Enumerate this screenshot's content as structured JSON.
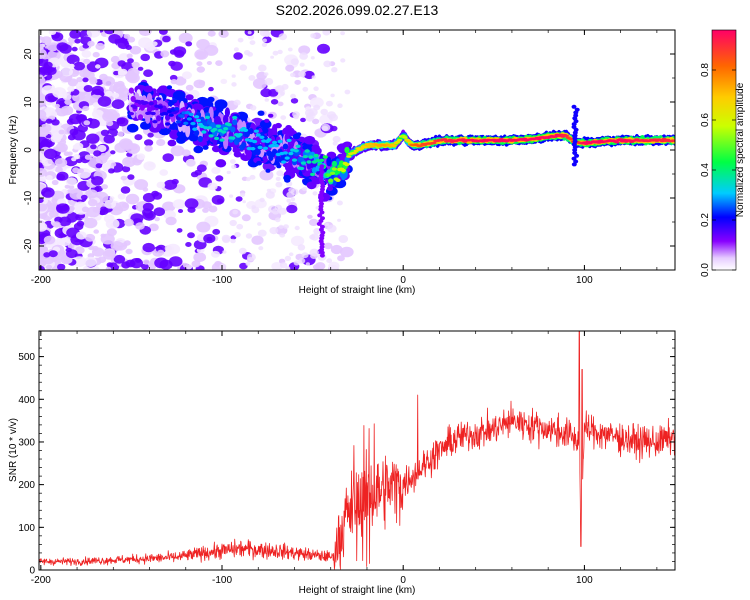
{
  "title": "S202.2026.099.02.27.E13",
  "colors": {
    "snr_line": "#ee2222",
    "ridge_hot": "#e81e3c",
    "background": "#ffffff",
    "axis": "#000000"
  },
  "chart_data": [
    {
      "type": "heatmap",
      "name": "spectrogram",
      "title": "S202.2026.099.02.27.E13",
      "xlabel": "Height of straight line (km)",
      "ylabel": "Frequency (Hz)",
      "xlim": [
        -201,
        150
      ],
      "ylim": [
        -25,
        25
      ],
      "xticks": [
        -200,
        -100,
        0,
        100
      ],
      "xtick_labels": [
        "-200",
        "-100",
        "0",
        "100"
      ],
      "yticks": [
        20,
        10,
        0,
        -10,
        -20
      ],
      "ytick_labels": [
        "20",
        "10",
        "0",
        "-10",
        "-20"
      ],
      "ridge": {
        "description_points_x_km": [
          -145,
          -130,
          -115,
          -105,
          -95,
          -85,
          -75,
          -65,
          -55,
          -45,
          -40,
          -35,
          -30,
          -25,
          -20,
          -10,
          -5,
          0,
          5,
          10,
          20,
          40,
          60,
          75,
          85,
          90,
          95,
          100,
          120,
          150
        ],
        "description_points_freq_hz": [
          9,
          8,
          6,
          5,
          4,
          2,
          1,
          0,
          -2,
          -4,
          -5,
          -4,
          -1,
          0,
          1,
          1,
          1,
          3,
          1,
          1,
          2,
          2,
          2,
          2.5,
          3,
          3,
          1.5,
          1.5,
          2,
          2
        ],
        "peak_amplitude": [
          0.15,
          0.2,
          0.3,
          0.35,
          0.35,
          0.3,
          0.3,
          0.3,
          0.35,
          0.4,
          0.5,
          0.6,
          0.6,
          0.65,
          0.7,
          0.75,
          0.7,
          0.55,
          0.8,
          0.85,
          0.9,
          0.95,
          0.95,
          0.95,
          0.95,
          0.9,
          0.85,
          0.95,
          0.95,
          0.9
        ]
      },
      "colorbar": {
        "label": "Normalized spectral amplitude",
        "range": [
          0.0,
          0.96
        ],
        "ticks": [
          0.0,
          0.2,
          0.4,
          0.6,
          0.8
        ],
        "tick_labels": [
          "0.0",
          "0.2",
          "0.4",
          "0.6",
          "0.8"
        ]
      }
    },
    {
      "type": "line",
      "name": "snr",
      "xlabel": "Height of straight line (km)",
      "ylabel": "SNR (10 * v/v)",
      "xlim": [
        -201,
        150
      ],
      "ylim": [
        0,
        560
      ],
      "xticks": [
        -200,
        -100,
        0,
        100
      ],
      "xtick_labels": [
        "-200",
        "-100",
        "0",
        "100"
      ],
      "yticks": [
        0,
        100,
        200,
        300,
        400,
        500
      ],
      "ytick_labels": [
        "0",
        "100",
        "200",
        "300",
        "400",
        "500"
      ],
      "series": [
        {
          "name": "SNR",
          "trend_x_km": [
            -201,
            -180,
            -150,
            -125,
            -110,
            -100,
            -90,
            -70,
            -50,
            -38,
            -36,
            -30,
            -20,
            -10,
            0,
            10,
            20,
            30,
            40,
            50,
            60,
            70,
            80,
            90,
            97,
            98,
            100,
            110,
            120,
            130,
            140,
            150
          ],
          "trend_y": [
            20,
            20,
            25,
            30,
            40,
            45,
            50,
            45,
            35,
            30,
            80,
            140,
            170,
            190,
            200,
            240,
            280,
            310,
            320,
            330,
            350,
            340,
            330,
            320,
            300,
            120,
            330,
            320,
            310,
            300,
            300,
            310
          ],
          "spikes_x_km": [
            8,
            97,
            98,
            99
          ],
          "spikes_y": [
            410,
            560,
            60,
            470
          ]
        }
      ]
    }
  ]
}
